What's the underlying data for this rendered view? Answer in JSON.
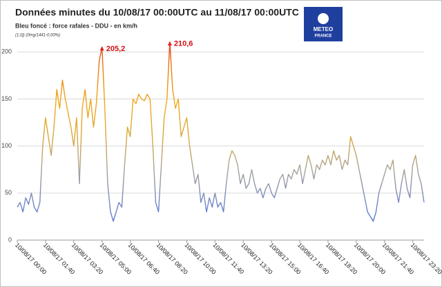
{
  "chart_data": {
    "type": "line",
    "title": "Données minutes du 10/08/17 00:00UTC au 11/08/17 00:00UTC",
    "subtitle": "Bleu foncé : force rafales - DDU - en km/h",
    "note": "(1,0j) (0mg/1441-0,00%)",
    "logo": [
      "METEO",
      "FRANCE"
    ],
    "ylim": [
      0,
      220
    ],
    "yticks": [
      0,
      50,
      100,
      150,
      200
    ],
    "grid": true,
    "categories": [
      "10/08/17 00:00",
      null,
      null,
      null,
      null,
      null,
      null,
      null,
      null,
      null,
      "10/08/17 01:40",
      null,
      null,
      null,
      null,
      null,
      null,
      null,
      null,
      null,
      "10/08/17 03:20",
      null,
      null,
      null,
      null,
      null,
      null,
      null,
      null,
      null,
      "10/08/17 05:00",
      null,
      null,
      null,
      null,
      null,
      null,
      null,
      null,
      null,
      "10/08/17 06:40",
      null,
      null,
      null,
      null,
      null,
      null,
      null,
      null,
      null,
      "10/08/17 08:20",
      null,
      null,
      null,
      null,
      null,
      null,
      null,
      null,
      null,
      "10/08/17 10:00",
      null,
      null,
      null,
      null,
      null,
      null,
      null,
      null,
      null,
      "10/08/17 11:40",
      null,
      null,
      null,
      null,
      null,
      null,
      null,
      null,
      null,
      "10/08/17 13:20",
      null,
      null,
      null,
      null,
      null,
      null,
      null,
      null,
      null,
      "10/08/17 15:00",
      null,
      null,
      null,
      null,
      null,
      null,
      null,
      null,
      null,
      "10/08/17 16:40",
      null,
      null,
      null,
      null,
      null,
      null,
      null,
      null,
      null,
      "10/08/17 18:20",
      null,
      null,
      null,
      null,
      null,
      null,
      null,
      null,
      null,
      "10/08/17 20:00",
      null,
      null,
      null,
      null,
      null,
      null,
      null,
      null,
      null,
      "10/08/17 21:40",
      null,
      null,
      null,
      null,
      null,
      null,
      null,
      null,
      null,
      "10/08/17 23:20",
      null,
      null,
      null,
      null
    ],
    "series": [
      {
        "colors": [
          "#3f63d6",
          "#6f84c8",
          "#a6a39a",
          "#d9a83a",
          "#f0a81a",
          "#f07c10",
          "#e02020"
        ],
        "values": [
          35,
          40,
          30,
          45,
          38,
          50,
          35,
          30,
          40,
          100,
          130,
          110,
          90,
          120,
          160,
          140,
          170,
          150,
          135,
          120,
          100,
          130,
          60,
          140,
          160,
          130,
          150,
          120,
          145,
          190,
          205.2,
          140,
          60,
          30,
          20,
          30,
          40,
          35,
          80,
          120,
          110,
          150,
          145,
          155,
          150,
          148,
          155,
          150,
          100,
          40,
          30,
          80,
          130,
          150,
          210.6,
          160,
          140,
          150,
          110,
          120,
          130,
          100,
          80,
          60,
          70,
          40,
          50,
          30,
          45,
          35,
          50,
          35,
          40,
          30,
          60,
          85,
          95,
          90,
          80,
          60,
          70,
          55,
          60,
          75,
          60,
          50,
          55,
          45,
          55,
          60,
          50,
          45,
          55,
          65,
          70,
          55,
          70,
          65,
          75,
          70,
          80,
          60,
          75,
          90,
          80,
          65,
          80,
          75,
          85,
          80,
          90,
          80,
          95,
          85,
          90,
          75,
          85,
          80,
          110,
          100,
          90,
          75,
          60,
          45,
          30,
          25,
          20,
          30,
          50,
          60,
          70,
          80,
          75,
          85,
          55,
          40,
          60,
          75,
          55,
          45,
          80,
          90,
          70,
          60,
          40
        ],
        "value_labels": [
          null,
          null,
          null,
          null,
          null,
          null,
          null,
          null,
          null,
          null,
          null,
          null,
          null,
          null,
          null,
          null,
          null,
          null,
          null,
          null,
          null,
          null,
          null,
          null,
          null,
          null,
          null,
          null,
          null,
          null,
          "205,2",
          null,
          null,
          null,
          null,
          null,
          null,
          null,
          null,
          null,
          null,
          null,
          null,
          null,
          null,
          null,
          null,
          null,
          null,
          null,
          null,
          null,
          null,
          null,
          "210,6",
          null,
          null,
          null,
          null,
          null,
          null,
          null,
          null,
          null,
          null,
          null,
          null,
          null,
          null,
          null,
          null,
          null,
          null,
          null,
          null,
          null,
          null,
          null,
          null,
          null,
          null,
          null,
          null,
          null,
          null,
          null,
          null,
          null,
          null,
          null,
          null,
          null,
          null,
          null,
          null,
          null,
          null,
          null,
          null,
          null,
          null,
          null,
          null,
          null,
          null,
          null,
          null,
          null,
          null,
          null,
          null,
          null,
          null,
          null,
          null,
          null,
          null,
          null,
          null,
          null,
          null,
          null,
          null,
          null,
          null,
          null,
          null,
          null,
          null,
          null,
          null,
          null,
          null,
          null,
          null,
          null,
          null,
          null,
          null,
          null,
          null,
          null,
          null,
          null,
          null
        ]
      }
    ]
  }
}
